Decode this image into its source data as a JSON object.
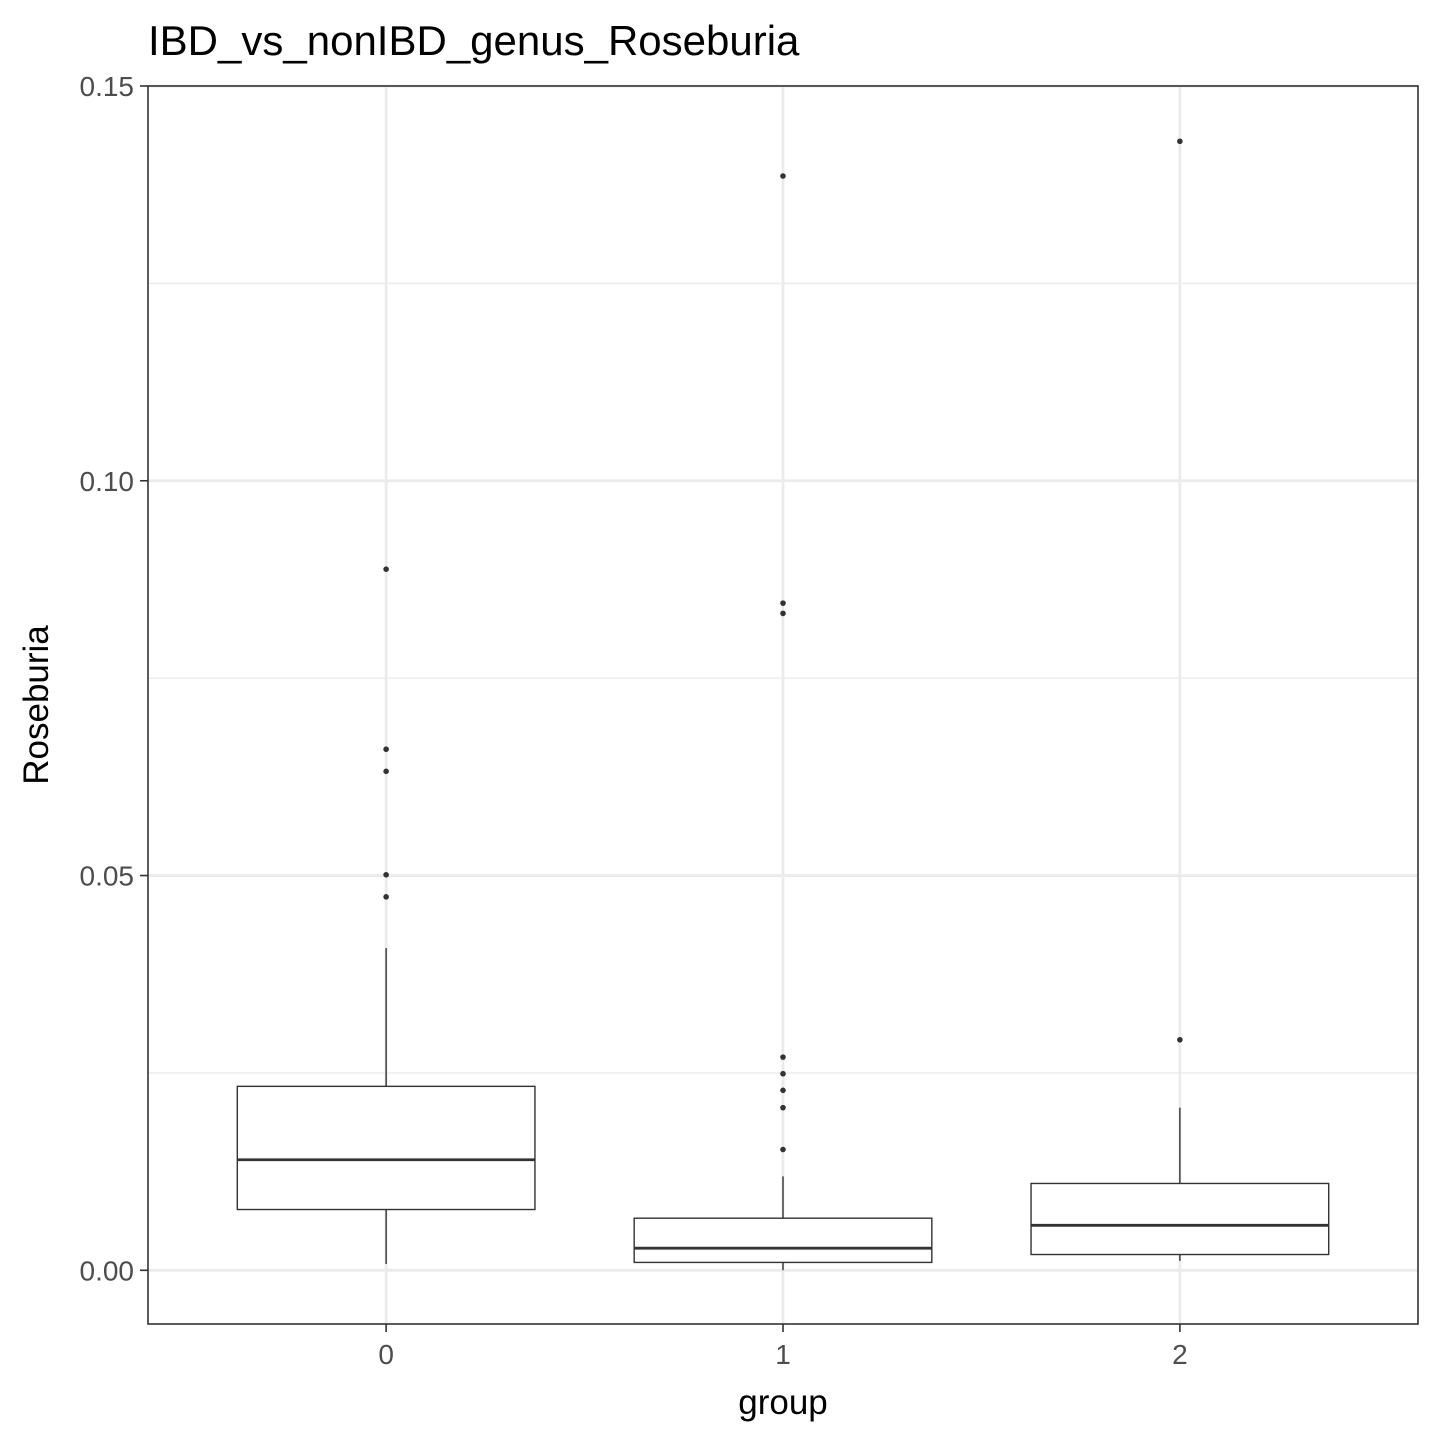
{
  "chart_data": {
    "type": "boxplot",
    "title": "IBD_vs_nonIBD_genus_Roseburia",
    "xlabel": "group",
    "ylabel": "Roseburia",
    "categories": [
      "0",
      "1",
      "2"
    ],
    "ylim": [
      -0.0068,
      0.15
    ],
    "y_ticks": [
      0.0,
      0.05,
      0.1,
      0.15
    ],
    "y_tick_labels": [
      "0.00",
      "0.05",
      "0.10",
      "0.15"
    ],
    "grid": true,
    "boxes": [
      {
        "group": "0",
        "whisker_low": 0.0008,
        "q1": 0.0077,
        "median": 0.014,
        "q3": 0.0233,
        "whisker_high": 0.0408,
        "outliers": [
          0.0888,
          0.066,
          0.0632,
          0.0501,
          0.0473
        ]
      },
      {
        "group": "1",
        "whisker_low": 0.0,
        "q1": 0.001,
        "median": 0.0028,
        "q3": 0.0066,
        "whisker_high": 0.0119,
        "outliers": [
          0.1386,
          0.0845,
          0.0832,
          0.027,
          0.0249,
          0.0228,
          0.0206,
          0.0153
        ]
      },
      {
        "group": "2",
        "whisker_low": 0.0012,
        "q1": 0.002,
        "median": 0.0057,
        "q3": 0.011,
        "whisker_high": 0.0206,
        "outliers": [
          0.143,
          0.0292
        ]
      }
    ]
  }
}
